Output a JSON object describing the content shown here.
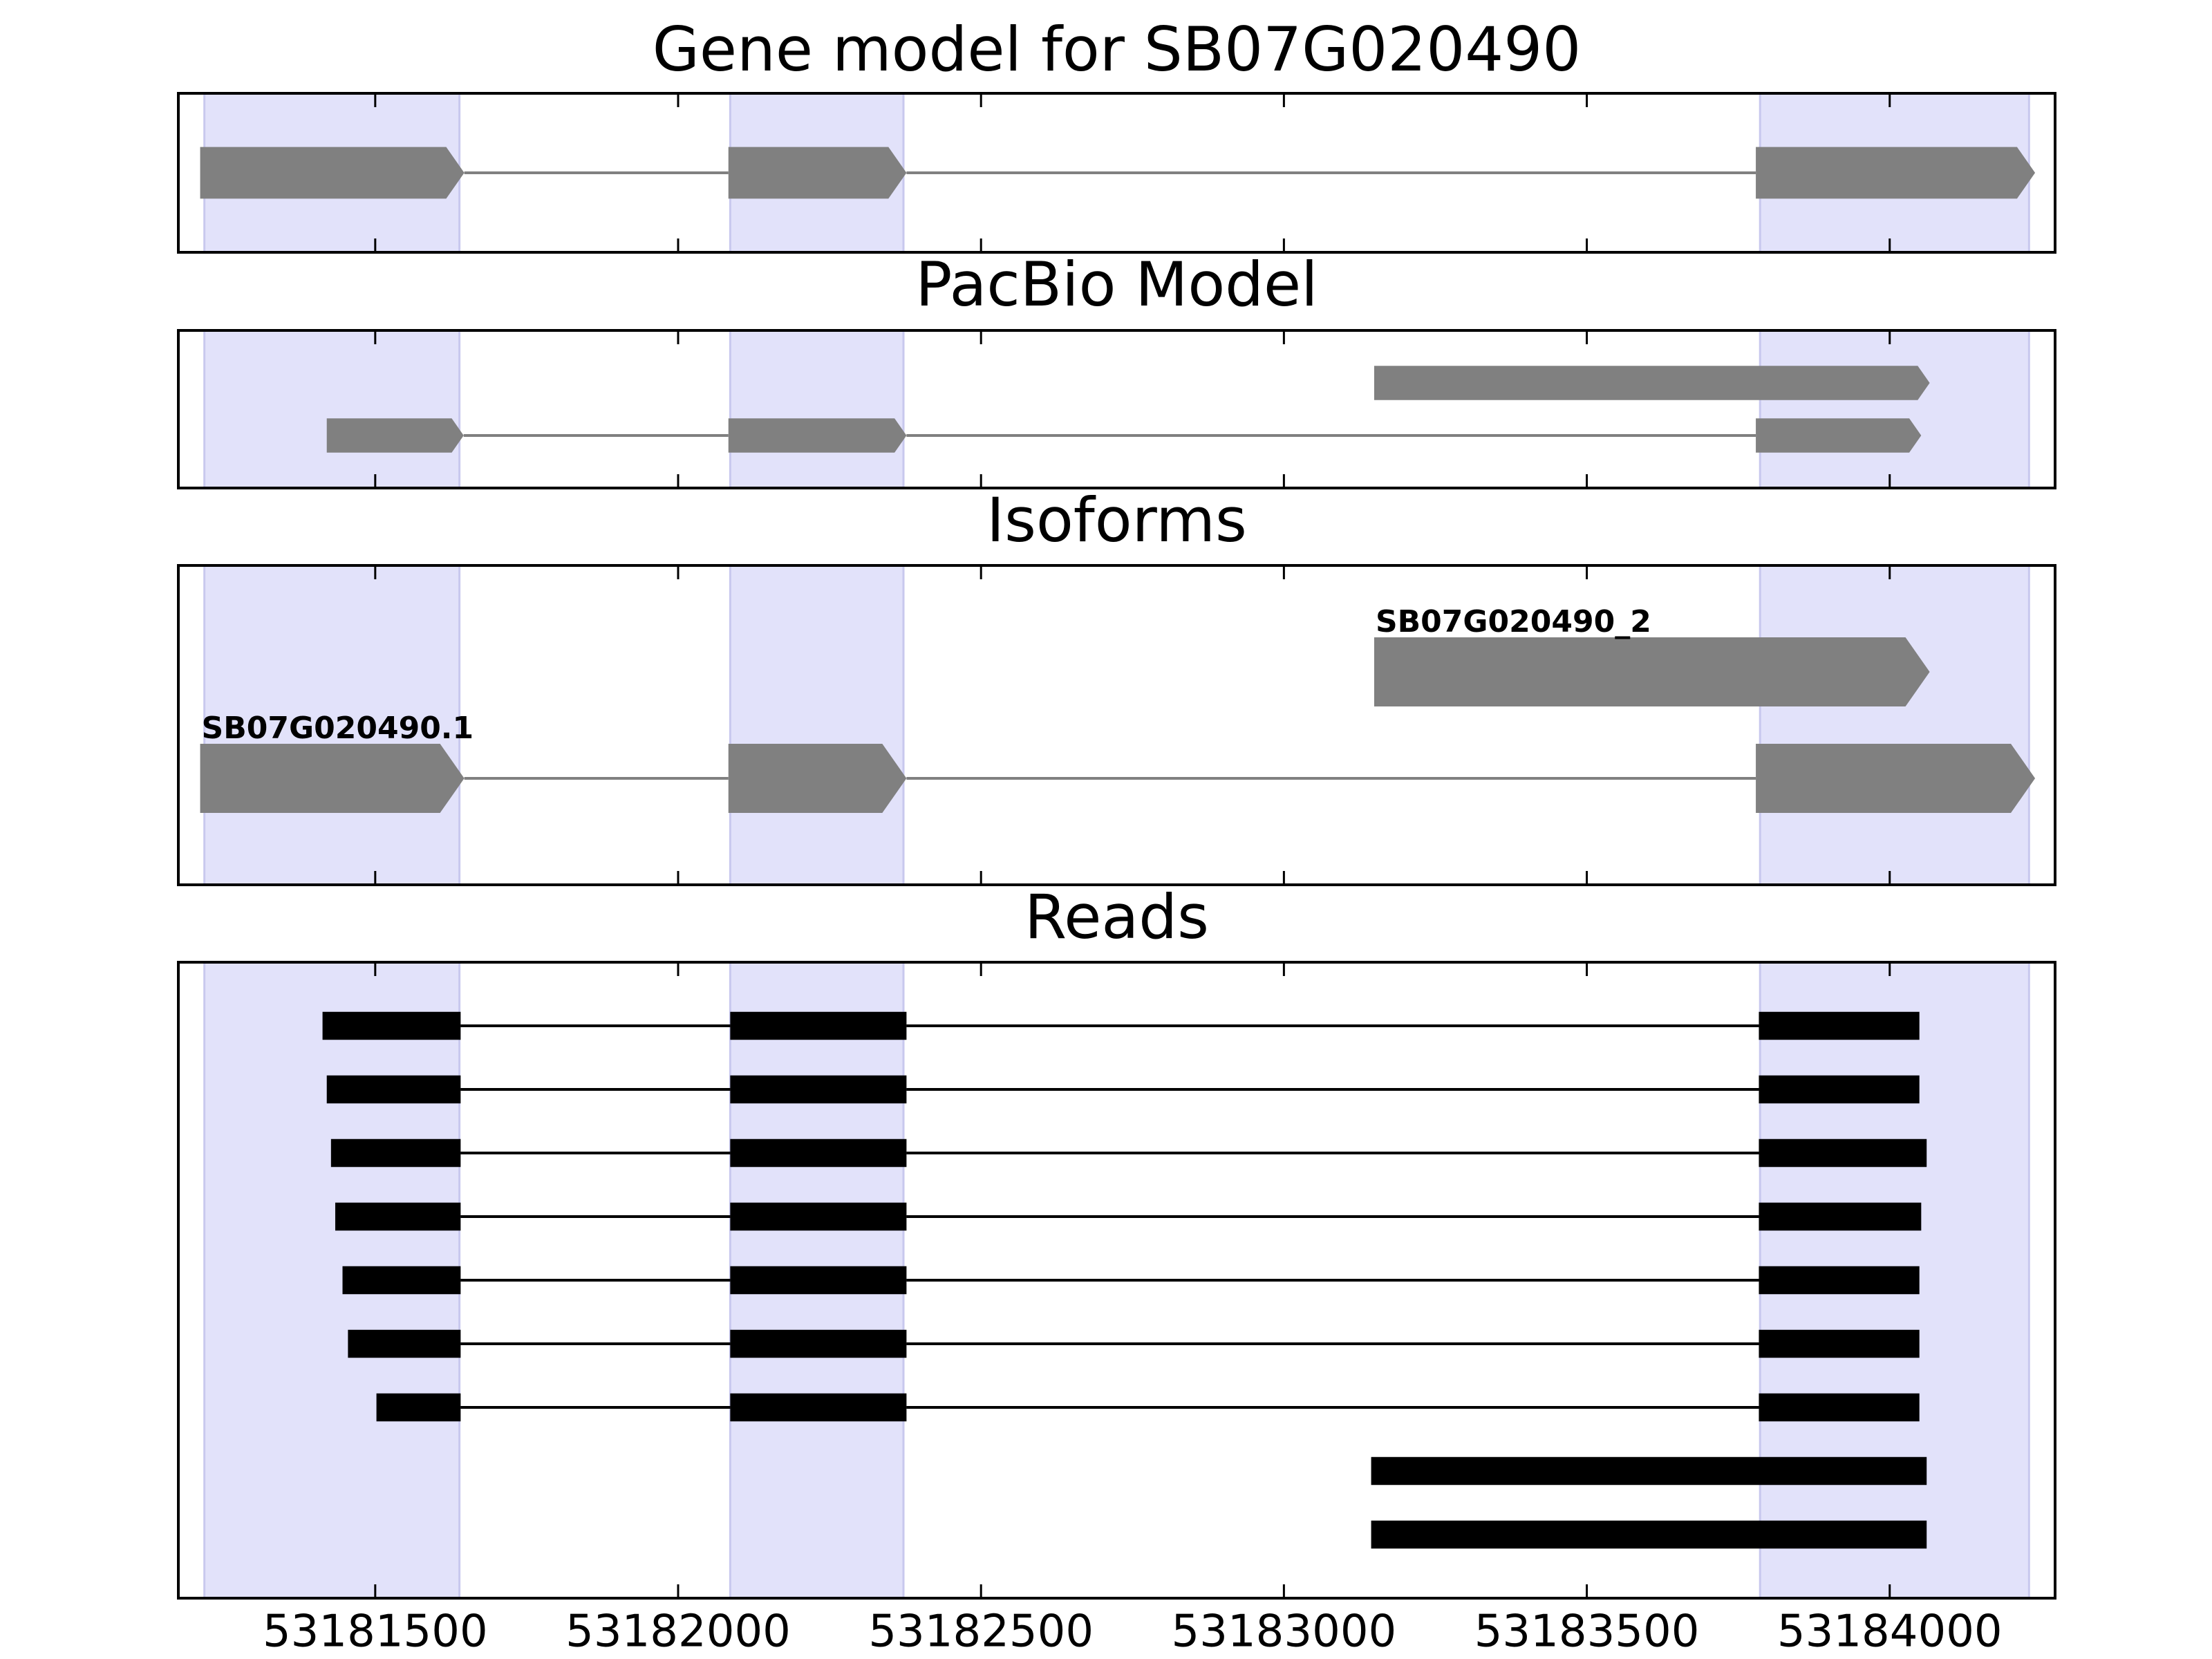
{
  "chart_data": [
    {
      "type": "track",
      "title": "Gene model for SB07G020490",
      "style": "arrow",
      "color": "#808080",
      "highlight_color": "#e2e2fa",
      "xlim": [
        53181175,
        53184273
      ],
      "xticks": [
        53181500,
        53182000,
        53182500,
        53183000,
        53183500,
        53184000
      ],
      "highlights": [
        [
          53181218,
          53181639
        ],
        [
          53182086,
          53182372
        ],
        [
          53183786,
          53184230
        ]
      ],
      "features": [
        {
          "exons": [
            [
              53181211,
              53181647
            ],
            [
              53182083,
              53182377
            ],
            [
              53183779,
              53184240
            ]
          ]
        }
      ]
    },
    {
      "type": "track",
      "title": "PacBio Model",
      "style": "arrow",
      "color": "#808080",
      "highlight_color": "#e2e2fa",
      "xlim": [
        53181175,
        53184273
      ],
      "xticks": [
        53181500,
        53182000,
        53182500,
        53183000,
        53183500,
        53184000
      ],
      "highlights": [
        [
          53181218,
          53181639
        ],
        [
          53182086,
          53182372
        ],
        [
          53183786,
          53184230
        ]
      ],
      "features": [
        {
          "exons": [
            [
              53181420,
              53181646
            ],
            [
              53182083,
              53182377
            ],
            [
              53183779,
              53184052
            ]
          ]
        },
        {
          "exons": [
            [
              53183149,
              53184066
            ]
          ]
        }
      ]
    },
    {
      "type": "track",
      "title": "Isoforms",
      "style": "arrow",
      "color": "#808080",
      "highlight_color": "#e2e2fa",
      "xlim": [
        53181175,
        53184273
      ],
      "xticks": [
        53181500,
        53182000,
        53182500,
        53183000,
        53183500,
        53184000
      ],
      "highlights": [
        [
          53181218,
          53181639
        ],
        [
          53182086,
          53182372
        ],
        [
          53183786,
          53184230
        ]
      ],
      "features": [
        {
          "name": "SB07G020490.1",
          "exons": [
            [
              53181211,
              53181647
            ],
            [
              53182083,
              53182377
            ],
            [
              53183779,
              53184240
            ]
          ]
        },
        {
          "name": "SB07G020490_2",
          "exons": [
            [
              53183149,
              53184066
            ]
          ]
        }
      ]
    },
    {
      "type": "track",
      "title": "Reads",
      "style": "bar",
      "color": "#000000",
      "highlight_color": "#e2e2fa",
      "tick_labels": true,
      "xlim": [
        53181175,
        53184273
      ],
      "xticks": [
        53181500,
        53182000,
        53182500,
        53183000,
        53183500,
        53184000
      ],
      "highlights": [
        [
          53181218,
          53181639
        ],
        [
          53182086,
          53182372
        ],
        [
          53183786,
          53184230
        ]
      ],
      "features": [
        {
          "exons": [
            [
              53181413,
              53181641
            ],
            [
              53182086,
              53182377
            ],
            [
              53183784,
              53184049
            ]
          ]
        },
        {
          "exons": [
            [
              53181420,
              53181641
            ],
            [
              53182086,
              53182377
            ],
            [
              53183784,
              53184049
            ]
          ]
        },
        {
          "exons": [
            [
              53181427,
              53181641
            ],
            [
              53182086,
              53182377
            ],
            [
              53183784,
              53184061
            ]
          ]
        },
        {
          "exons": [
            [
              53181434,
              53181641
            ],
            [
              53182086,
              53182377
            ],
            [
              53183784,
              53184052
            ]
          ]
        },
        {
          "exons": [
            [
              53181446,
              53181641
            ],
            [
              53182086,
              53182377
            ],
            [
              53183784,
              53184049
            ]
          ]
        },
        {
          "exons": [
            [
              53181455,
              53181641
            ],
            [
              53182086,
              53182377
            ],
            [
              53183784,
              53184049
            ]
          ]
        },
        {
          "exons": [
            [
              53181502,
              53181641
            ],
            [
              53182086,
              53182377
            ],
            [
              53183784,
              53184049
            ]
          ]
        },
        {
          "exons": [
            [
              53183144,
              53184061
            ]
          ]
        },
        {
          "exons": [
            [
              53183144,
              53184061
            ]
          ]
        }
      ]
    }
  ]
}
